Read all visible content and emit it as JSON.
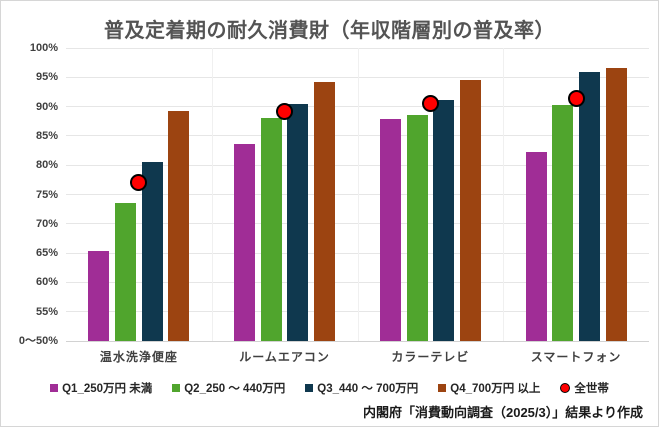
{
  "chart_data": {
    "type": "bar",
    "title": "普及定着期の耐久消費財（年収階層別の普及率）",
    "source_note": "内閣府「消費動向調査（2025/3）」結果より作成",
    "categories": [
      "温水洗浄便座",
      "ルームエアコン",
      "カラーテレビ",
      "スマートフォン"
    ],
    "series": [
      {
        "name": "Q1_250万円 未満",
        "color": "#A02D96",
        "values": [
          65.3,
          83.7,
          87.8,
          82.2
        ]
      },
      {
        "name": "Q2_250 ～ 440万円",
        "color": "#50A52D",
        "values": [
          73.5,
          88.0,
          88.6,
          90.3
        ]
      },
      {
        "name": "Q3_440 ～ 700万円",
        "color": "#0F384E",
        "values": [
          80.5,
          90.5,
          91.1,
          95.9
        ]
      },
      {
        "name": "Q4_700万円 以上",
        "color": "#9C4411",
        "values": [
          89.2,
          94.2,
          94.5,
          96.6
        ]
      }
    ],
    "overlay_series": {
      "name": "全世帯",
      "marker": "circle",
      "color": "#FF0000",
      "border_color": "#000000",
      "values": [
        77.1,
        89.2,
        90.6,
        91.3
      ]
    },
    "ylim": [
      50,
      100
    ],
    "ytick_step": 5,
    "ytick_labels": [
      "0～50%",
      "55%",
      "60%",
      "65%",
      "70%",
      "75%",
      "80%",
      "85%",
      "90%",
      "95%",
      "100%"
    ],
    "grid": true,
    "legend_position": "bottom"
  }
}
